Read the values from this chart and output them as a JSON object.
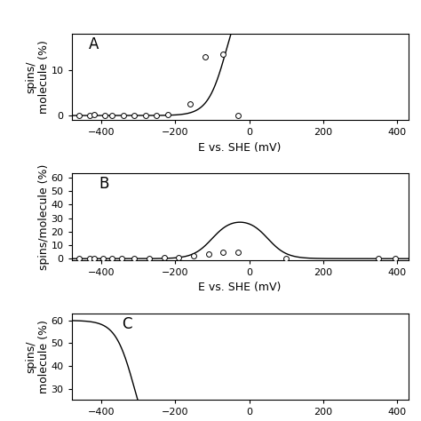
{
  "panel_A": {
    "label": "A",
    "scatter_x": [
      -460,
      -430,
      -420,
      -390,
      -370,
      -340,
      -310,
      -280,
      -250,
      -220,
      -160,
      -120,
      -70,
      -30
    ],
    "scatter_y": [
      0.0,
      0.0,
      0.2,
      0.1,
      0.1,
      0.1,
      0.0,
      0.1,
      0.0,
      0.3,
      2.5,
      13.0,
      13.5,
      0.0
    ],
    "curve_Em": -60,
    "curve_n": 1,
    "curve_max": 30,
    "ylim": [
      -1,
      18
    ],
    "yticks": [
      0,
      10
    ],
    "ylabel": "spins/\nmolecule (%)",
    "xlabel": "E vs. SHE (mV)",
    "xlim": [
      -480,
      430
    ],
    "xticks": [
      -400,
      -200,
      0,
      200,
      400
    ]
  },
  "panel_B": {
    "label": "B",
    "scatter_x": [
      -460,
      -430,
      -420,
      -395,
      -370,
      -345,
      -310,
      -270,
      -230,
      -190,
      -150,
      -110,
      -70,
      -30,
      100,
      350,
      395
    ],
    "scatter_y": [
      0.0,
      0.0,
      0.1,
      0.1,
      0.0,
      0.1,
      0.1,
      0.2,
      0.5,
      1.0,
      2.0,
      3.5,
      4.8,
      5.0,
      0.2,
      0.0,
      0.0
    ],
    "curve_Em1": -100,
    "curve_Em2": 50,
    "curve_n": 1,
    "curve_max": 30,
    "ylim": [
      -1,
      63
    ],
    "yticks": [
      0,
      10,
      20,
      30,
      40,
      50,
      60
    ],
    "ylabel": "spins/molecule (%)",
    "xlabel": "E vs. SHE (mV)",
    "xlim": [
      -480,
      430
    ],
    "xticks": [
      -400,
      -200,
      0,
      200,
      400
    ]
  },
  "panel_C": {
    "label": "C",
    "curve_Em": -310,
    "curve_n": 1,
    "curve_max": 60,
    "ylim": [
      25,
      63
    ],
    "yticks": [
      30,
      40,
      50,
      60
    ],
    "ylabel": "spins/\nmolecule (%)",
    "xlim": [
      -480,
      430
    ],
    "xticks": [
      -400,
      -200,
      0,
      200,
      400
    ]
  },
  "background_color": "#ffffff",
  "line_color": "#000000",
  "scatter_color": "#ffffff",
  "scatter_edgecolor": "#000000",
  "label_fontsize": 12,
  "tick_fontsize": 8,
  "axis_label_fontsize": 9
}
